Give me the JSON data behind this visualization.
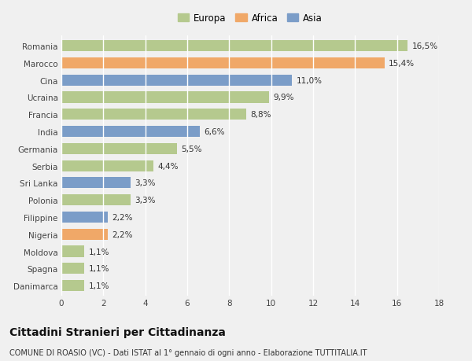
{
  "categories": [
    "Romania",
    "Marocco",
    "Cina",
    "Ucraina",
    "Francia",
    "India",
    "Germania",
    "Serbia",
    "Sri Lanka",
    "Polonia",
    "Filippine",
    "Nigeria",
    "Moldova",
    "Spagna",
    "Danimarca"
  ],
  "values": [
    16.5,
    15.4,
    11.0,
    9.9,
    8.8,
    6.6,
    5.5,
    4.4,
    3.3,
    3.3,
    2.2,
    2.2,
    1.1,
    1.1,
    1.1
  ],
  "labels": [
    "16,5%",
    "15,4%",
    "11,0%",
    "9,9%",
    "8,8%",
    "6,6%",
    "5,5%",
    "4,4%",
    "3,3%",
    "3,3%",
    "2,2%",
    "2,2%",
    "1,1%",
    "1,1%",
    "1,1%"
  ],
  "continents": [
    "Europa",
    "Africa",
    "Asia",
    "Europa",
    "Europa",
    "Asia",
    "Europa",
    "Europa",
    "Asia",
    "Europa",
    "Asia",
    "Africa",
    "Europa",
    "Europa",
    "Europa"
  ],
  "colors": {
    "Europa": "#b5c98e",
    "Africa": "#f0a868",
    "Asia": "#7b9dc8"
  },
  "xlim": [
    0,
    18
  ],
  "xticks": [
    0,
    2,
    4,
    6,
    8,
    10,
    12,
    14,
    16,
    18
  ],
  "title": "Cittadini Stranieri per Cittadinanza",
  "subtitle": "COMUNE DI ROASIO (VC) - Dati ISTAT al 1° gennaio di ogni anno - Elaborazione TUTTITALIA.IT",
  "background_color": "#f0f0f0",
  "plot_bg_color": "#f0f0f0",
  "grid_color": "#ffffff",
  "bar_height": 0.65,
  "label_fontsize": 7.5,
  "tick_fontsize": 7.5,
  "title_fontsize": 10,
  "subtitle_fontsize": 7,
  "legend_fontsize": 8.5
}
